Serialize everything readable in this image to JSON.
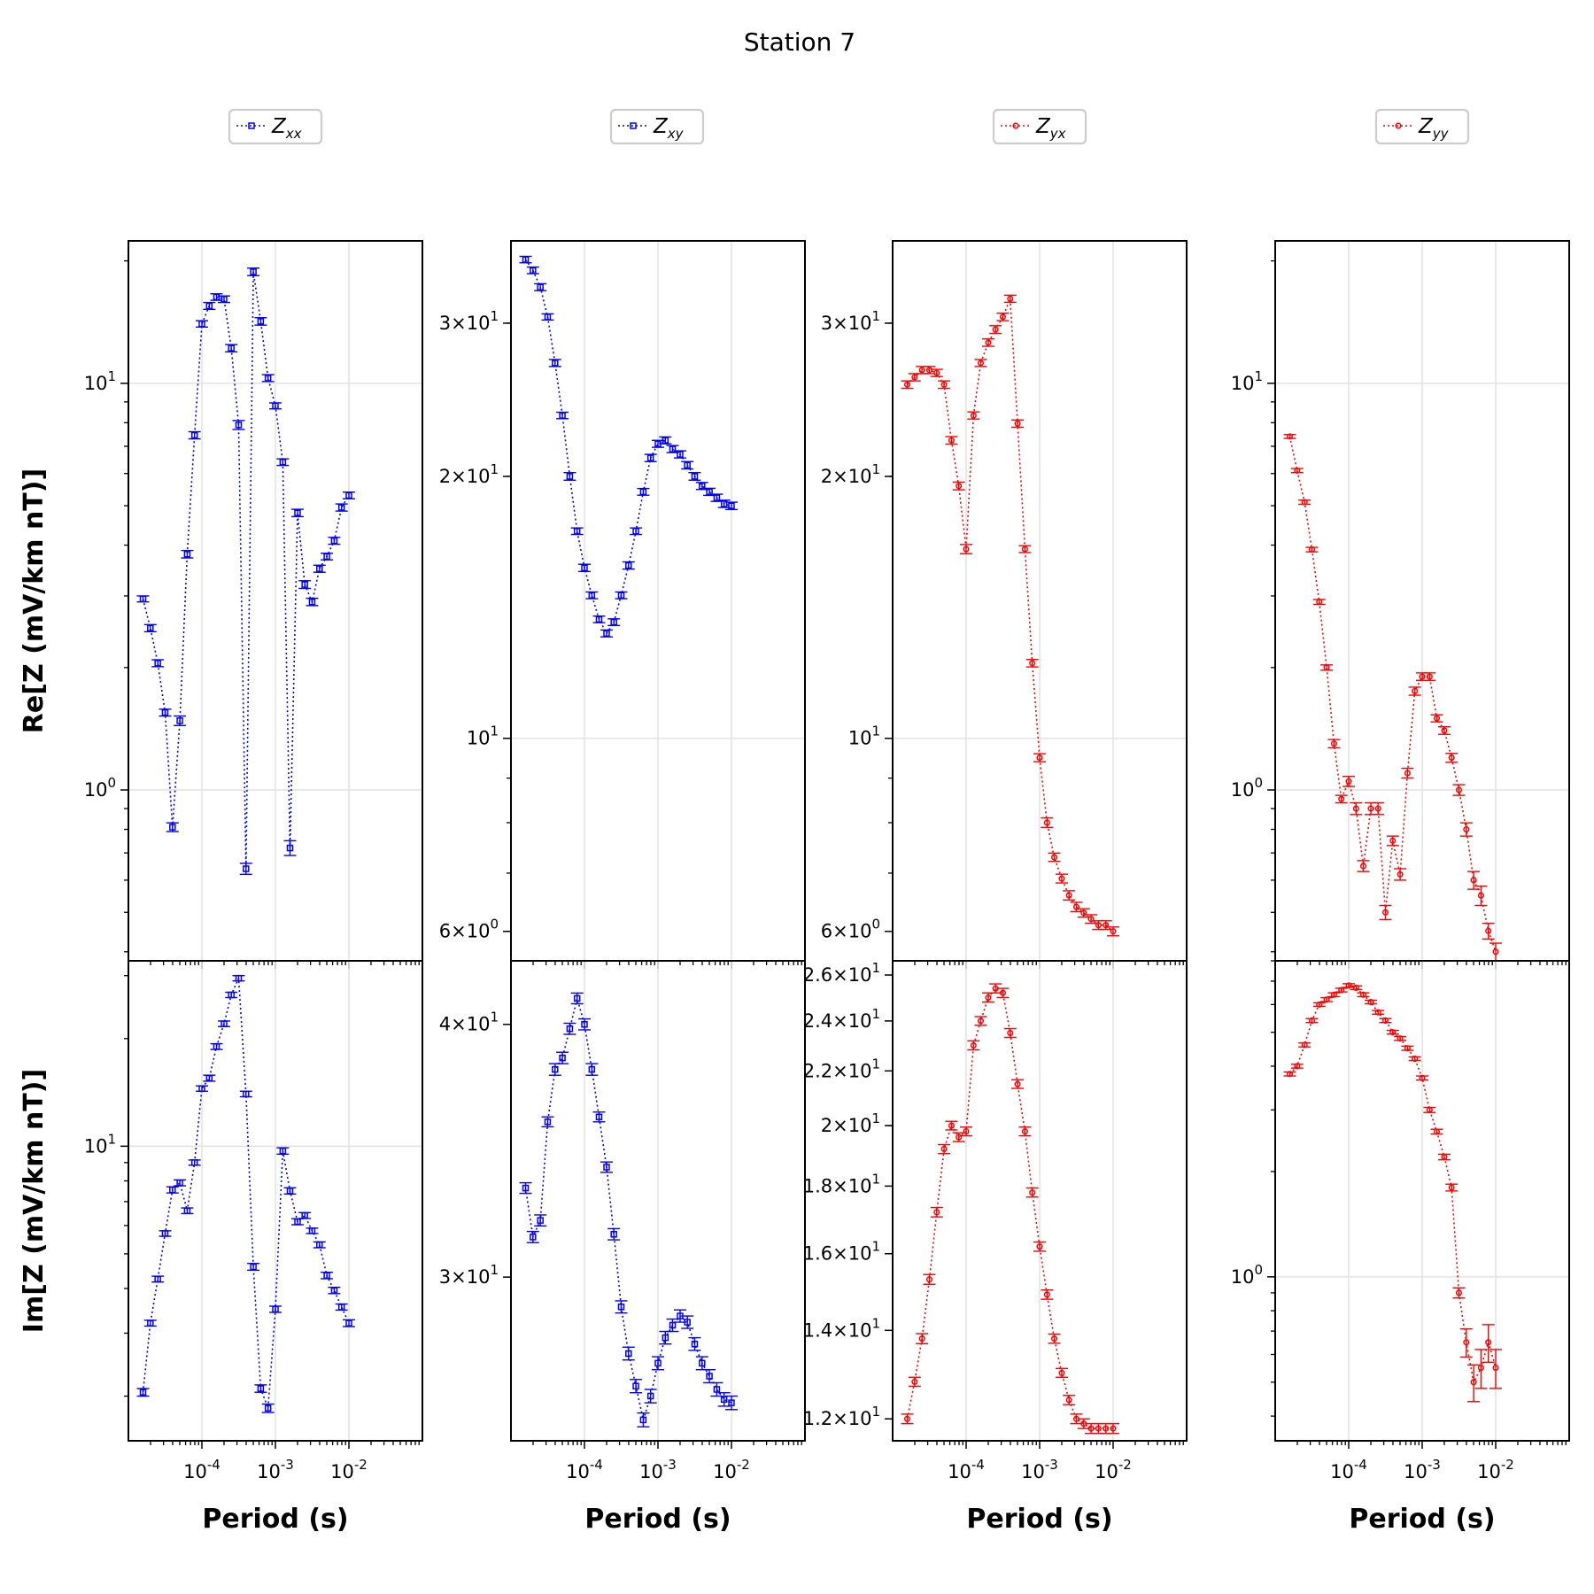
{
  "figure": {
    "title": "Station 7"
  },
  "chart_data": [
    {
      "type": "scatter",
      "component": "xx",
      "part": "real",
      "legend": {
        "base": "Z",
        "sub": "xx"
      },
      "color": "#0000ff",
      "marker": "square",
      "xlabel": "Period (s)",
      "ylabel": "Re[Z (mV/km nT)]",
      "xscale": "log",
      "yscale": "log",
      "xlim": [
        1e-05,
        0.1
      ],
      "ylim": [
        0.38,
        22.4
      ],
      "grid": true,
      "y_ticks": [
        {
          "label": "10",
          "exp": "1",
          "value": 10
        },
        {
          "label": "10",
          "exp": "0",
          "value": 1
        }
      ],
      "x": [
        1.58e-05,
        1.99e-05,
        2.51e-05,
        3.16e-05,
        3.98e-05,
        5.01e-05,
        6.31e-05,
        7.94e-05,
        0.0001,
        0.000126,
        0.000158,
        0.0002,
        0.000251,
        0.000316,
        0.000398,
        0.000501,
        0.000631,
        0.000794,
        0.001,
        0.00126,
        0.00158,
        0.002,
        0.00251,
        0.00316,
        0.00398,
        0.00501,
        0.00631,
        0.00794,
        0.01
      ],
      "y": [
        2.95,
        2.5,
        2.05,
        1.55,
        0.81,
        1.48,
        3.8,
        7.45,
        14.0,
        15.5,
        16.3,
        16.1,
        12.2,
        7.9,
        0.64,
        18.8,
        14.2,
        10.3,
        8.8,
        6.4,
        0.72,
        4.8,
        3.2,
        2.9,
        3.5,
        3.75,
        4.1,
        4.95,
        5.3
      ],
      "y_err": [
        0.05,
        0.05,
        0.04,
        0.03,
        0.02,
        0.04,
        0.08,
        0.15,
        0.25,
        0.3,
        0.3,
        0.3,
        0.25,
        0.2,
        0.02,
        0.4,
        0.3,
        0.2,
        0.15,
        0.12,
        0.03,
        0.1,
        0.07,
        0.06,
        0.07,
        0.07,
        0.08,
        0.1,
        0.1
      ]
    },
    {
      "type": "scatter",
      "component": "xx",
      "part": "imag",
      "color": "#0000ff",
      "marker": "square",
      "xlabel": "Period (s)",
      "ylabel": "Im[Z (mV/km nT)]",
      "xscale": "log",
      "yscale": "log",
      "xlim": [
        1e-05,
        0.1
      ],
      "ylim": [
        1.5,
        33.0
      ],
      "grid": true,
      "y_ticks": [
        {
          "label": "10",
          "exp": "1",
          "value": 10
        }
      ],
      "x": [
        1.58e-05,
        1.99e-05,
        2.51e-05,
        3.16e-05,
        3.98e-05,
        5.01e-05,
        6.31e-05,
        7.94e-05,
        0.0001,
        0.000126,
        0.000158,
        0.0002,
        0.000251,
        0.000316,
        0.000398,
        0.000501,
        0.000631,
        0.000794,
        0.001,
        0.00126,
        0.00158,
        0.002,
        0.00251,
        0.00316,
        0.00398,
        0.00501,
        0.00631,
        0.00794,
        0.01
      ],
      "y": [
        2.05,
        3.2,
        4.25,
        5.7,
        7.55,
        7.9,
        6.6,
        9.0,
        14.5,
        15.5,
        19.0,
        22.0,
        26.5,
        29.5,
        14.0,
        4.6,
        2.1,
        1.85,
        3.5,
        9.7,
        7.5,
        6.15,
        6.4,
        5.8,
        5.3,
        4.35,
        3.95,
        3.55,
        3.2
      ],
      "y_err": [
        0.05,
        0.06,
        0.08,
        0.1,
        0.15,
        0.15,
        0.12,
        0.15,
        0.25,
        0.3,
        0.35,
        0.4,
        0.45,
        0.5,
        0.25,
        0.1,
        0.05,
        0.05,
        0.07,
        0.2,
        0.15,
        0.12,
        0.12,
        0.1,
        0.1,
        0.09,
        0.08,
        0.07,
        0.07
      ]
    },
    {
      "type": "scatter",
      "component": "xy",
      "part": "real",
      "legend": {
        "base": "Z",
        "sub": "xy"
      },
      "color": "#0000ff",
      "marker": "square",
      "xlabel": "Period (s)",
      "ylabel": "",
      "xscale": "log",
      "yscale": "log",
      "xlim": [
        1e-05,
        0.1
      ],
      "ylim": [
        5.55,
        37.3
      ],
      "grid": true,
      "y_ticks": [
        {
          "label": "3×10",
          "exp": "1",
          "value": 30
        },
        {
          "label": "2×10",
          "exp": "1",
          "value": 20
        },
        {
          "label": "10",
          "exp": "1",
          "value": 10
        },
        {
          "label": "6×10",
          "exp": "0",
          "value": 6
        }
      ],
      "x": [
        1.58e-05,
        1.99e-05,
        2.51e-05,
        3.16e-05,
        3.98e-05,
        5.01e-05,
        6.31e-05,
        7.94e-05,
        0.0001,
        0.000126,
        0.000158,
        0.0002,
        0.000251,
        0.000316,
        0.000398,
        0.000501,
        0.000631,
        0.000794,
        0.001,
        0.00126,
        0.00158,
        0.002,
        0.00251,
        0.00316,
        0.00398,
        0.00501,
        0.00631,
        0.00794,
        0.01
      ],
      "y": [
        35.5,
        34.5,
        33.0,
        30.5,
        27.0,
        23.5,
        20.0,
        17.3,
        15.7,
        14.6,
        13.7,
        13.2,
        13.6,
        14.6,
        15.8,
        17.3,
        19.2,
        21.0,
        21.8,
        22.0,
        21.5,
        21.2,
        20.6,
        20.0,
        19.5,
        19.2,
        18.9,
        18.6,
        18.5
      ],
      "y_err": [
        0.3,
        0.3,
        0.3,
        0.25,
        0.25,
        0.2,
        0.2,
        0.15,
        0.15,
        0.13,
        0.12,
        0.12,
        0.12,
        0.13,
        0.15,
        0.15,
        0.17,
        0.2,
        0.2,
        0.2,
        0.2,
        0.2,
        0.2,
        0.2,
        0.18,
        0.18,
        0.18,
        0.18,
        0.18
      ]
    },
    {
      "type": "scatter",
      "component": "xy",
      "part": "imag",
      "color": "#0000ff",
      "marker": "square",
      "xlabel": "Period (s)",
      "ylabel": "",
      "xscale": "log",
      "yscale": "log",
      "xlim": [
        1e-05,
        0.1
      ],
      "ylim": [
        24.9,
        43.0
      ],
      "grid": true,
      "y_ticks": [
        {
          "label": "4×10",
          "exp": "1",
          "value": 40
        },
        {
          "label": "3×10",
          "exp": "1",
          "value": 30
        }
      ],
      "x": [
        1.58e-05,
        1.99e-05,
        2.51e-05,
        3.16e-05,
        3.98e-05,
        5.01e-05,
        6.31e-05,
        7.94e-05,
        0.0001,
        0.000126,
        0.000158,
        0.0002,
        0.000251,
        0.000316,
        0.000398,
        0.000501,
        0.000631,
        0.000794,
        0.001,
        0.00126,
        0.00158,
        0.002,
        0.00251,
        0.00316,
        0.00398,
        0.00501,
        0.00631,
        0.00794,
        0.01
      ],
      "y": [
        33.2,
        31.4,
        32.0,
        35.8,
        38.0,
        38.5,
        39.8,
        41.2,
        40.0,
        38.0,
        36.0,
        34.0,
        31.5,
        29.0,
        27.5,
        26.5,
        25.5,
        26.2,
        27.2,
        28.0,
        28.4,
        28.7,
        28.5,
        27.8,
        27.2,
        26.8,
        26.4,
        26.1,
        26.0
      ],
      "y_err": [
        0.2,
        0.2,
        0.2,
        0.2,
        0.25,
        0.25,
        0.25,
        0.25,
        0.25,
        0.25,
        0.2,
        0.2,
        0.2,
        0.2,
        0.2,
        0.2,
        0.2,
        0.2,
        0.2,
        0.2,
        0.2,
        0.2,
        0.2,
        0.2,
        0.2,
        0.2,
        0.2,
        0.2,
        0.2
      ]
    },
    {
      "type": "scatter",
      "component": "yx",
      "part": "real",
      "legend": {
        "base": "Z",
        "sub": "yx"
      },
      "color": "#ff0000",
      "marker": "circle",
      "xlabel": "Period (s)",
      "ylabel": "",
      "xscale": "log",
      "yscale": "log",
      "xlim": [
        1e-05,
        0.1
      ],
      "ylim": [
        5.55,
        37.3
      ],
      "grid": true,
      "y_ticks": [
        {
          "label": "3×10",
          "exp": "1",
          "value": 30
        },
        {
          "label": "2×10",
          "exp": "1",
          "value": 20
        },
        {
          "label": "10",
          "exp": "1",
          "value": 10
        },
        {
          "label": "6×10",
          "exp": "0",
          "value": 6
        }
      ],
      "x": [
        1.58e-05,
        1.99e-05,
        2.51e-05,
        3.16e-05,
        3.98e-05,
        5.01e-05,
        6.31e-05,
        7.94e-05,
        0.0001,
        0.000126,
        0.000158,
        0.0002,
        0.000251,
        0.000316,
        0.000398,
        0.000501,
        0.000631,
        0.000794,
        0.001,
        0.00126,
        0.00158,
        0.002,
        0.00251,
        0.00316,
        0.00398,
        0.00501,
        0.00631,
        0.00794,
        0.01
      ],
      "y": [
        25.5,
        26.0,
        26.5,
        26.5,
        26.3,
        25.5,
        22.0,
        19.5,
        16.5,
        23.5,
        27.0,
        28.5,
        29.5,
        30.5,
        32.0,
        23.0,
        16.5,
        12.2,
        9.5,
        8.0,
        7.3,
        6.9,
        6.6,
        6.4,
        6.3,
        6.2,
        6.1,
        6.1,
        6.0
      ],
      "y_err": [
        0.25,
        0.25,
        0.25,
        0.25,
        0.25,
        0.25,
        0.22,
        0.2,
        0.2,
        0.22,
        0.25,
        0.28,
        0.3,
        0.3,
        0.3,
        0.22,
        0.15,
        0.12,
        0.1,
        0.1,
        0.08,
        0.08,
        0.08,
        0.08,
        0.07,
        0.07,
        0.07,
        0.07,
        0.07
      ]
    },
    {
      "type": "scatter",
      "component": "yx",
      "part": "imag",
      "color": "#ff0000",
      "marker": "circle",
      "xlabel": "Period (s)",
      "ylabel": "",
      "xscale": "log",
      "yscale": "log",
      "xlim": [
        1e-05,
        0.1
      ],
      "ylim": [
        11.55,
        26.65
      ],
      "grid": true,
      "y_ticks": [
        {
          "label": "2.6×10",
          "exp": "1",
          "value": 26
        },
        {
          "label": "2.4×10",
          "exp": "1",
          "value": 24
        },
        {
          "label": "2.2×10",
          "exp": "1",
          "value": 22
        },
        {
          "label": "2×10",
          "exp": "1",
          "value": 20
        },
        {
          "label": "1.8×10",
          "exp": "1",
          "value": 18
        },
        {
          "label": "1.6×10",
          "exp": "1",
          "value": 16
        },
        {
          "label": "1.4×10",
          "exp": "1",
          "value": 14
        },
        {
          "label": "1.2×10",
          "exp": "1",
          "value": 12
        }
      ],
      "x": [
        1.58e-05,
        1.99e-05,
        2.51e-05,
        3.16e-05,
        3.98e-05,
        5.01e-05,
        6.31e-05,
        7.94e-05,
        0.0001,
        0.000126,
        0.000158,
        0.0002,
        0.000251,
        0.000316,
        0.000398,
        0.000501,
        0.000631,
        0.000794,
        0.001,
        0.00126,
        0.00158,
        0.002,
        0.00251,
        0.00316,
        0.00398,
        0.00501,
        0.00631,
        0.00794,
        0.01
      ],
      "y": [
        12.0,
        12.8,
        13.8,
        15.3,
        17.2,
        19.2,
        20.0,
        19.6,
        19.8,
        23.0,
        24.0,
        25.0,
        25.4,
        25.2,
        23.5,
        21.5,
        19.8,
        17.8,
        16.2,
        14.9,
        13.8,
        13.0,
        12.4,
        12.0,
        11.9,
        11.8,
        11.8,
        11.8,
        11.8
      ],
      "y_err": [
        0.1,
        0.1,
        0.12,
        0.13,
        0.14,
        0.15,
        0.15,
        0.15,
        0.15,
        0.18,
        0.18,
        0.2,
        0.2,
        0.2,
        0.18,
        0.16,
        0.15,
        0.14,
        0.13,
        0.12,
        0.11,
        0.1,
        0.1,
        0.1,
        0.1,
        0.1,
        0.1,
        0.1,
        0.1
      ]
    },
    {
      "type": "scatter",
      "component": "yy",
      "part": "real",
      "legend": {
        "base": "Z",
        "sub": "yy"
      },
      "color": "#ff0000",
      "marker": "circle",
      "xlabel": "Period (s)",
      "ylabel": "",
      "xscale": "log",
      "yscale": "log",
      "xlim": [
        1e-05,
        0.1
      ],
      "ylim": [
        0.38,
        22.4
      ],
      "grid": true,
      "y_ticks": [
        {
          "label": "10",
          "exp": "1",
          "value": 10
        },
        {
          "label": "10",
          "exp": "0",
          "value": 1
        }
      ],
      "x": [
        1.58e-05,
        1.99e-05,
        2.51e-05,
        3.16e-05,
        3.98e-05,
        5.01e-05,
        6.31e-05,
        7.94e-05,
        0.0001,
        0.000126,
        0.000158,
        0.0002,
        0.000251,
        0.000316,
        0.000398,
        0.000501,
        0.000631,
        0.000794,
        0.001,
        0.00126,
        0.00158,
        0.002,
        0.00251,
        0.00316,
        0.00398,
        0.00501,
        0.00631,
        0.00794,
        0.01
      ],
      "y": [
        7.4,
        6.1,
        5.1,
        3.9,
        2.9,
        2.0,
        1.3,
        0.95,
        1.05,
        0.9,
        0.65,
        0.9,
        0.9,
        0.5,
        0.75,
        0.62,
        1.1,
        1.75,
        1.9,
        1.9,
        1.5,
        1.4,
        1.2,
        1.0,
        0.8,
        0.6,
        0.55,
        0.45,
        0.4
      ],
      "y_err": [
        0.08,
        0.07,
        0.06,
        0.05,
        0.04,
        0.03,
        0.03,
        0.02,
        0.03,
        0.03,
        0.02,
        0.03,
        0.03,
        0.02,
        0.02,
        0.02,
        0.03,
        0.04,
        0.04,
        0.04,
        0.03,
        0.03,
        0.03,
        0.03,
        0.03,
        0.03,
        0.03,
        0.02,
        0.02
      ]
    },
    {
      "type": "scatter",
      "component": "yy",
      "part": "imag",
      "color": "#ff0000",
      "marker": "circle",
      "xlabel": "Period (s)",
      "ylabel": "",
      "xscale": "log",
      "yscale": "log",
      "xlim": [
        1e-05,
        0.1
      ],
      "ylim": [
        0.34,
        8.0
      ],
      "grid": true,
      "y_ticks": [
        {
          "label": "10",
          "exp": "0",
          "value": 1
        }
      ],
      "x": [
        1.58e-05,
        1.99e-05,
        2.51e-05,
        3.16e-05,
        3.98e-05,
        5.01e-05,
        6.31e-05,
        7.94e-05,
        0.0001,
        0.000126,
        0.000158,
        0.0002,
        0.000251,
        0.000316,
        0.000398,
        0.000501,
        0.000631,
        0.000794,
        0.001,
        0.00126,
        0.00158,
        0.002,
        0.00251,
        0.00316,
        0.00398,
        0.00501,
        0.00631,
        0.00794,
        0.01
      ],
      "y": [
        3.8,
        4.0,
        4.6,
        5.4,
        6.0,
        6.2,
        6.4,
        6.6,
        6.8,
        6.7,
        6.4,
        6.1,
        5.7,
        5.4,
        5.0,
        4.8,
        4.5,
        4.2,
        3.7,
        3.0,
        2.6,
        2.2,
        1.8,
        0.9,
        0.65,
        0.5,
        0.55,
        0.65,
        0.55
      ],
      "y_err": [
        0.05,
        0.05,
        0.06,
        0.07,
        0.07,
        0.08,
        0.08,
        0.08,
        0.08,
        0.08,
        0.08,
        0.07,
        0.07,
        0.07,
        0.06,
        0.06,
        0.06,
        0.05,
        0.05,
        0.05,
        0.04,
        0.04,
        0.04,
        0.03,
        0.06,
        0.06,
        0.07,
        0.08,
        0.07
      ]
    }
  ]
}
